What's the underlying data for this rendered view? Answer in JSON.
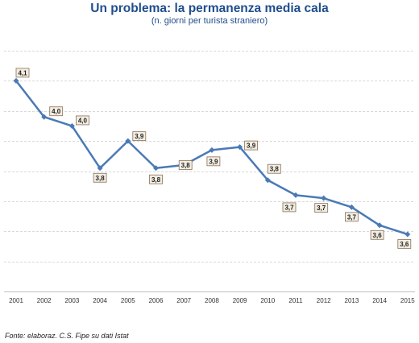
{
  "chart_data": {
    "type": "line",
    "title": "Un problema: la permanenza media cala",
    "subtitle": "(n. giorni per turista straniero)",
    "xlabel": "",
    "ylabel": "",
    "categories": [
      "2001",
      "2002",
      "2003",
      "2004",
      "2005",
      "2006",
      "2007",
      "2008",
      "2009",
      "2010",
      "2011",
      "2012",
      "2013",
      "2014",
      "2015"
    ],
    "series": [
      {
        "values": [
          4.1,
          3.98,
          3.95,
          3.81,
          3.9,
          3.81,
          3.82,
          3.87,
          3.88,
          3.77,
          3.72,
          3.71,
          3.68,
          3.62,
          3.59
        ],
        "labels": [
          "4,1",
          "4,0",
          "4,0",
          "3,8",
          "3,9",
          "3,8",
          "3,8",
          "3,9",
          "3,9",
          "3,8",
          "3,7",
          "3,7",
          "3,7",
          "3,6",
          "3,6"
        ],
        "color": "#4a7ab6"
      }
    ],
    "ylim": [
      3.4,
      4.2
    ],
    "grid": true,
    "legend": "none",
    "label_box_fill": "#f2ede2",
    "label_box_border": "#8b6f55",
    "gridline_color": "#d9d9d9"
  },
  "source": "Fonte:  elaboraz. C.S. Fipe su dati Istat"
}
